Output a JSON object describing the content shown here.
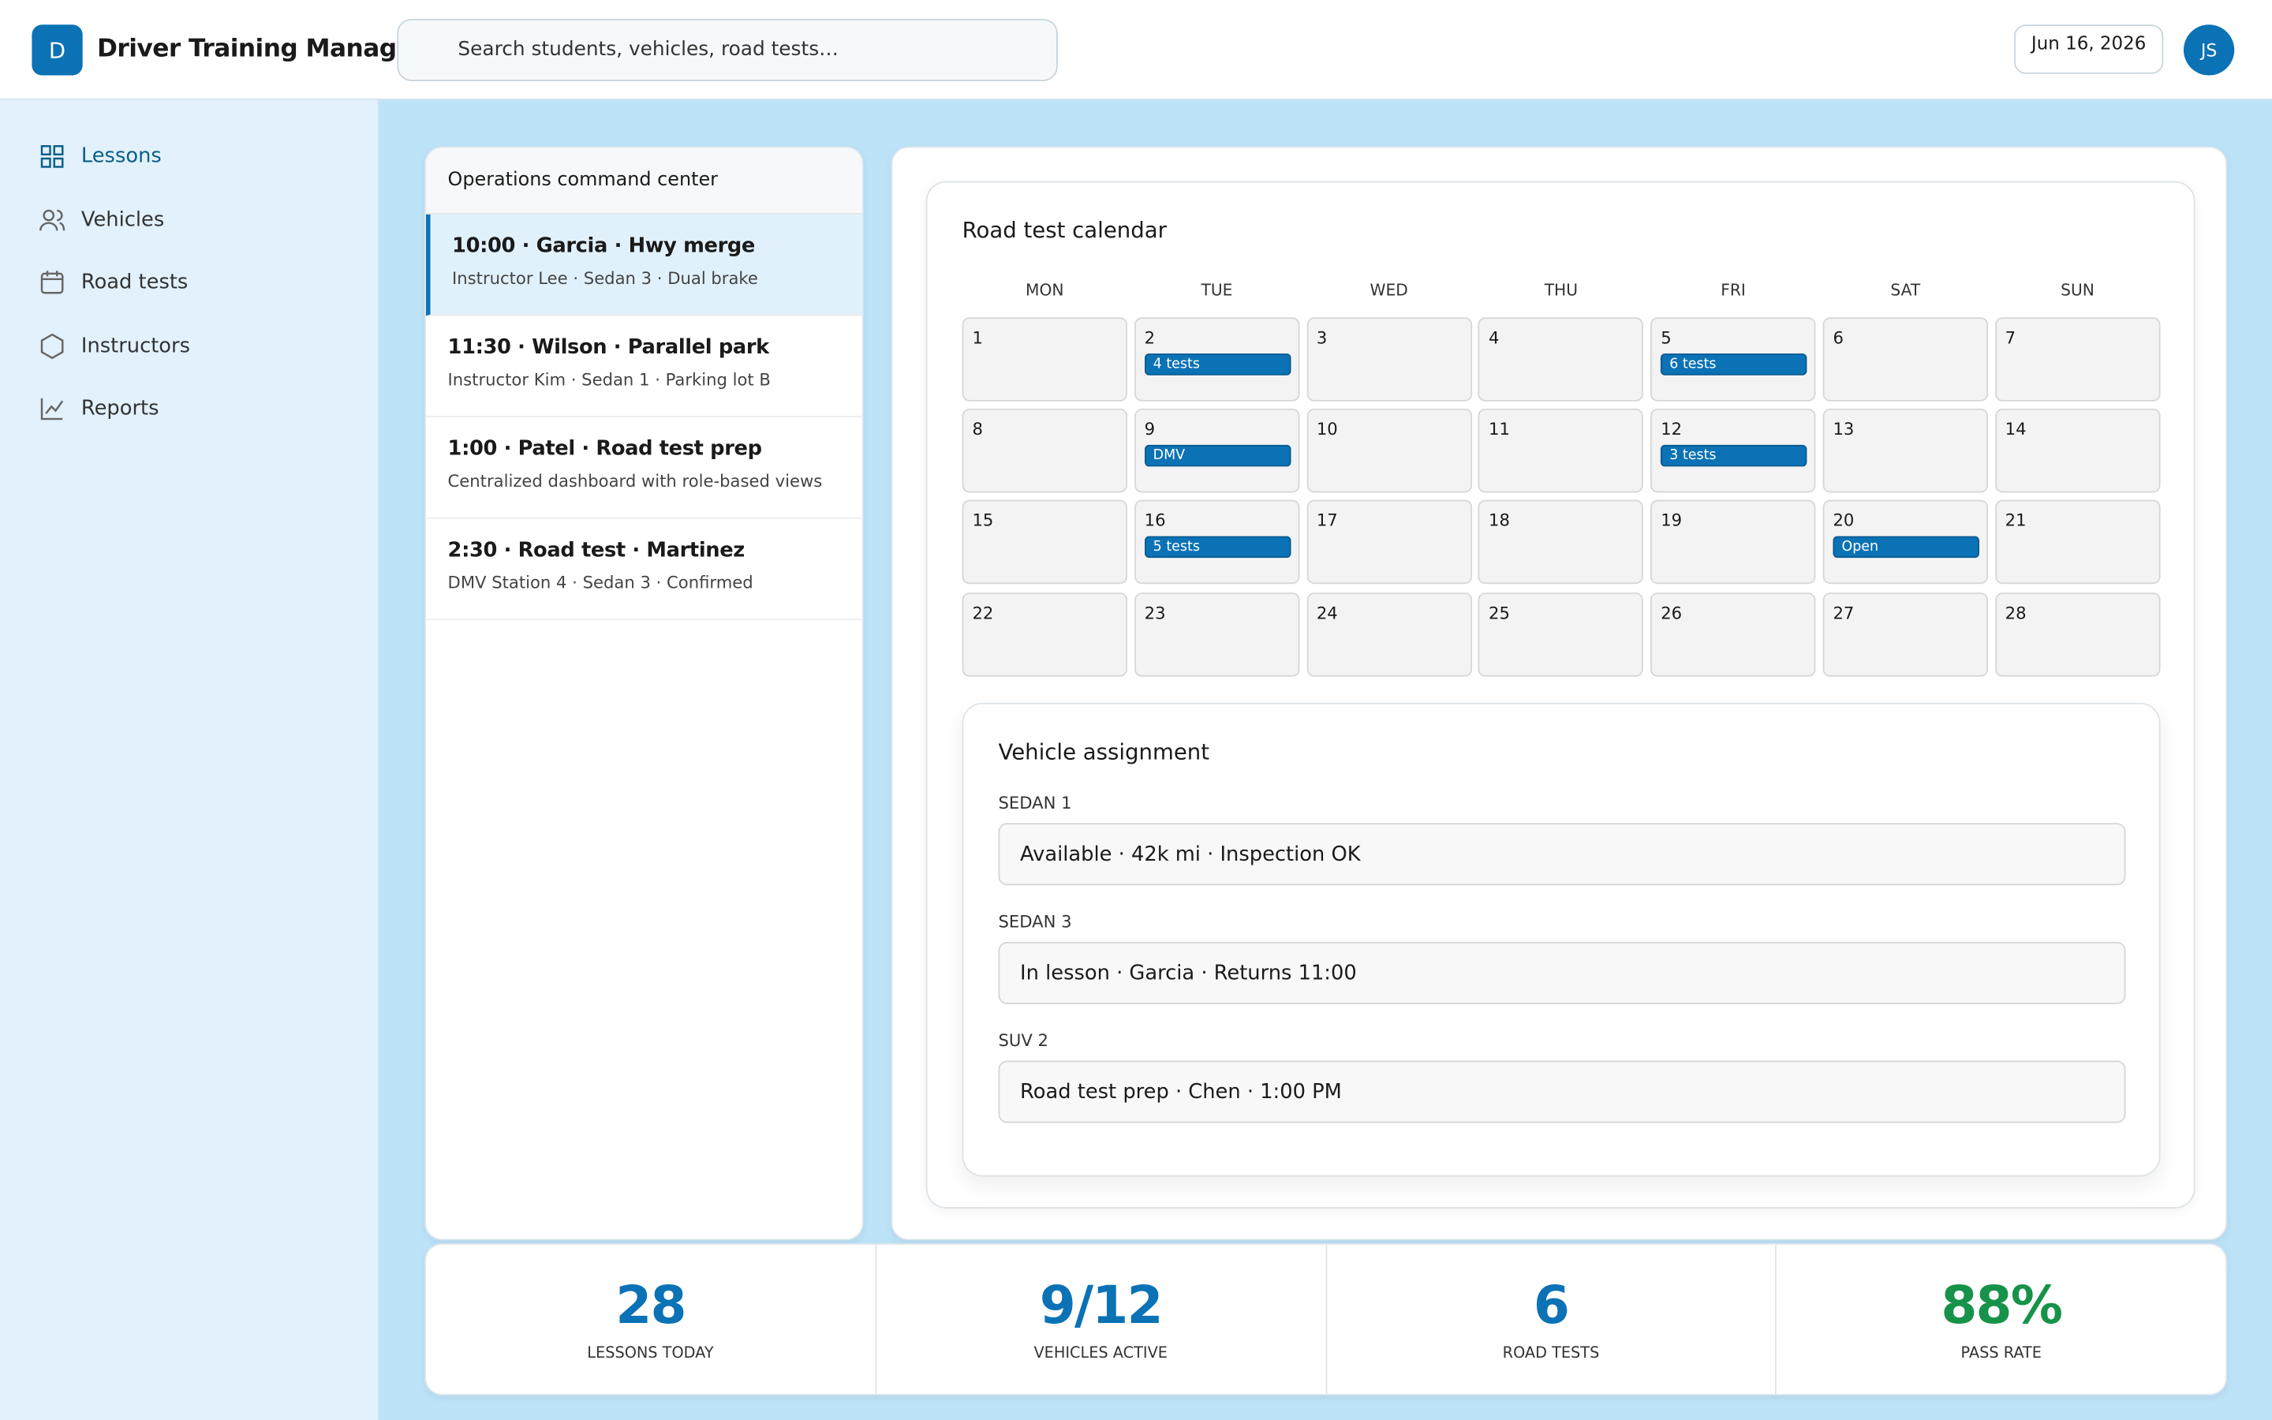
{
  "header": {
    "logo": "D",
    "title": "Driver Training Manager",
    "search_placeholder": "Search students, vehicles, road tests…",
    "date": "Jun 16, 2026",
    "avatar": "JS"
  },
  "nav": [
    {
      "label": "Lessons",
      "active": true
    },
    {
      "label": "Vehicles"
    },
    {
      "label": "Road tests"
    },
    {
      "label": "Instructors"
    },
    {
      "label": "Reports"
    }
  ],
  "lessons": {
    "title": "Operations command center",
    "items": [
      {
        "title": "10:00 · Garcia · Hwy merge",
        "detail": "Instructor Lee · Sedan 3 · Dual brake",
        "active": true
      },
      {
        "title": "11:30 · Wilson · Parallel park",
        "detail": "Instructor Kim · Sedan 1 · Parking lot B"
      },
      {
        "title": "1:00 · Patel · Road test prep",
        "detail": "Centralized dashboard with role-based views"
      },
      {
        "title": "2:30 · Road test · Martinez",
        "detail": "DMV Station 4 · Sedan 3 · Confirmed"
      }
    ]
  },
  "calendar": {
    "title": "Road test calendar",
    "weekdays": [
      "MON",
      "TUE",
      "WED",
      "THU",
      "FRI",
      "SAT",
      "SUN"
    ],
    "days": [
      {
        "day": "1"
      },
      {
        "day": "2",
        "badge": "4 tests"
      },
      {
        "day": "3"
      },
      {
        "day": "4"
      },
      {
        "day": "5",
        "badge": "6 tests"
      },
      {
        "day": "6"
      },
      {
        "day": "7"
      },
      {
        "day": "8"
      },
      {
        "day": "9",
        "badge": "DMV"
      },
      {
        "day": "10"
      },
      {
        "day": "11"
      },
      {
        "day": "12",
        "badge": "3 tests"
      },
      {
        "day": "13"
      },
      {
        "day": "14"
      },
      {
        "day": "15"
      },
      {
        "day": "16",
        "badge": "5 tests"
      },
      {
        "day": "17"
      },
      {
        "day": "18"
      },
      {
        "day": "19"
      },
      {
        "day": "20",
        "badge": "Open"
      },
      {
        "day": "21"
      },
      {
        "day": "22"
      },
      {
        "day": "23"
      },
      {
        "day": "24"
      },
      {
        "day": "25"
      },
      {
        "day": "26"
      },
      {
        "day": "27"
      },
      {
        "day": "28"
      }
    ]
  },
  "vehicles": {
    "title": "Vehicle assignment",
    "items": [
      {
        "name": "SEDAN 1",
        "status": "Available · 42k mi · Inspection OK"
      },
      {
        "name": "SEDAN 3",
        "status": "In lesson · Garcia · Returns 11:00"
      },
      {
        "name": "SUV 2",
        "status": "Road test prep · Chen · 1:00 PM"
      }
    ]
  },
  "stats": [
    {
      "value": "28",
      "label": "LESSONS TODAY",
      "color": "#0b72b5"
    },
    {
      "value": "9/12",
      "label": "VEHICLES ACTIVE",
      "color": "#0b72b5"
    },
    {
      "value": "6",
      "label": "ROAD TESTS",
      "color": "#0b72b5"
    },
    {
      "value": "88%",
      "label": "PASS RATE",
      "color": "#17924a"
    }
  ]
}
